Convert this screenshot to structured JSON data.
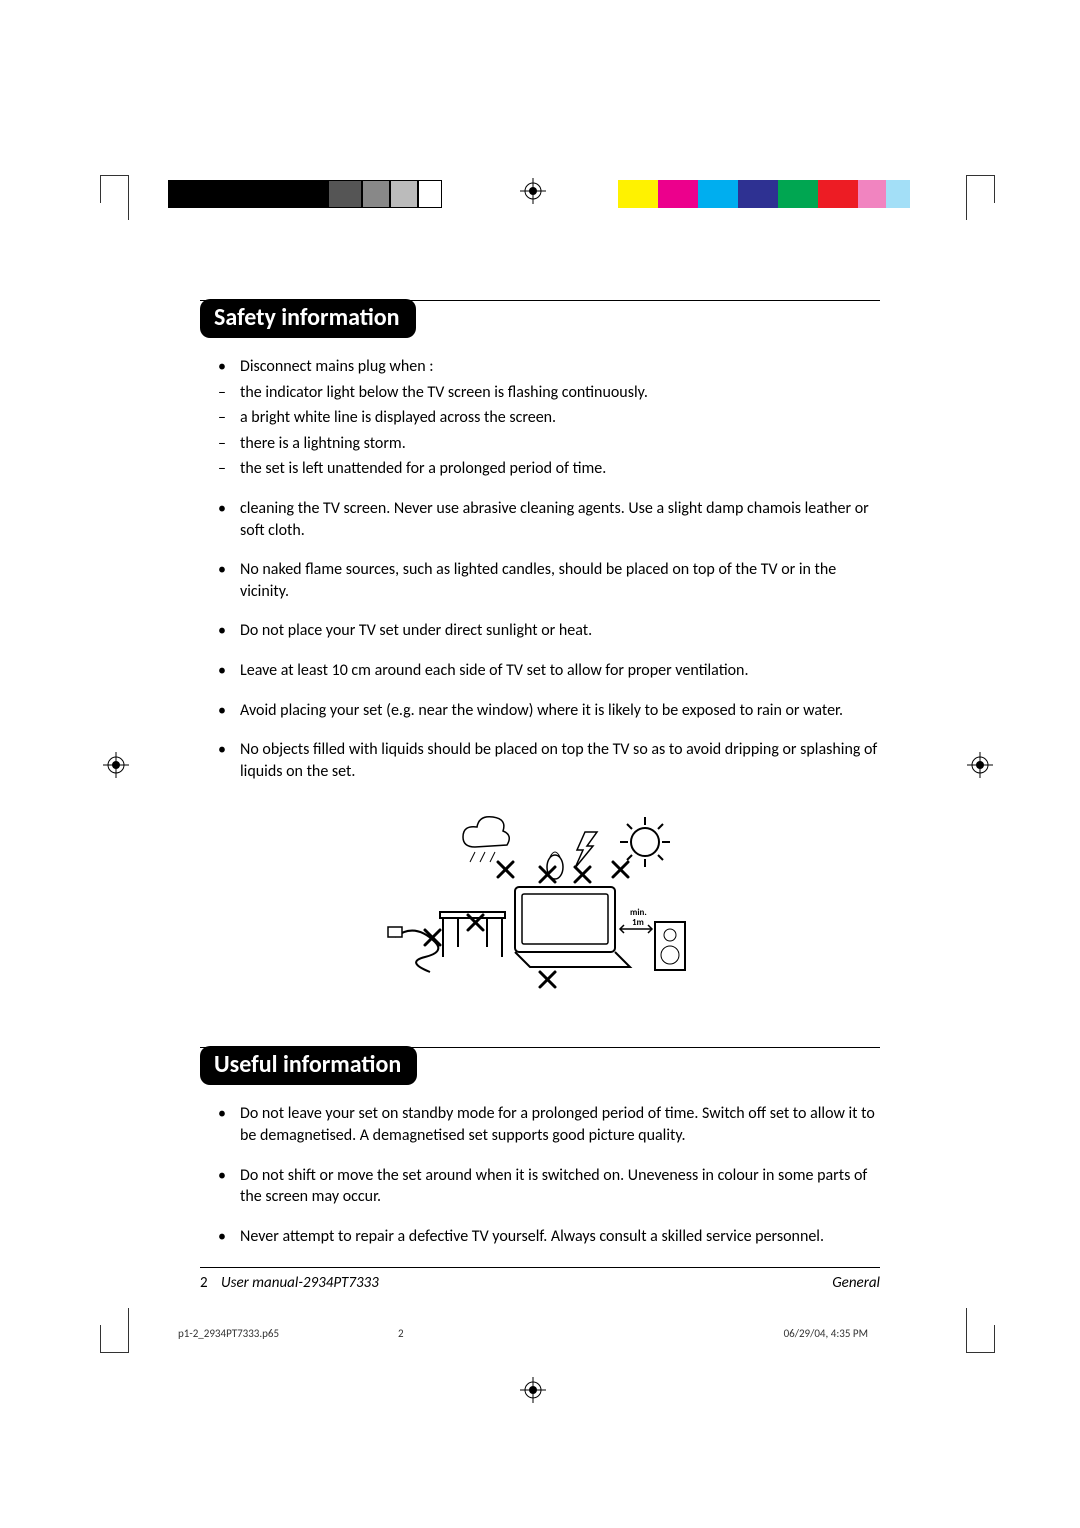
{
  "color_bars": {
    "left": {
      "widths": [
        40,
        40,
        40,
        40,
        34,
        28,
        28,
        24
      ],
      "colors": [
        "#000000",
        "#000000",
        "#000000",
        "#000000",
        "#555555",
        "#888888",
        "#bbbbbb",
        "#ffffff"
      ],
      "border": "#000"
    },
    "right": {
      "widths": [
        40,
        40,
        40,
        40,
        40,
        40,
        28,
        24
      ],
      "colors": [
        "#fff200",
        "#ec008c",
        "#00aeef",
        "#2e3192",
        "#00a651",
        "#ed1c24",
        "#f184c0",
        "#a3dff7"
      ]
    }
  },
  "section1": {
    "title": "Safety information",
    "items": [
      {
        "type": "dot",
        "text": "Disconnect mains plug when :"
      },
      {
        "type": "dash",
        "text": "the indicator light below the TV screen is flashing continuously."
      },
      {
        "type": "dash",
        "text": "a bright white line is displayed across the screen."
      },
      {
        "type": "dash",
        "text": "there is a lightning storm."
      },
      {
        "type": "dash",
        "text": "the set is left unattended for a prolonged period of time."
      },
      {
        "type": "dot",
        "gap": true,
        "text": "cleaning the TV screen. Never use abrasive cleaning agents. Use a slight damp chamois leather or soft cloth."
      },
      {
        "type": "dot",
        "gap": true,
        "text": "No naked flame sources, such as lighted candles, should be placed on top of the TV or in the vicinity."
      },
      {
        "type": "dot",
        "gap": true,
        "text": "Do not place your TV set under direct sunlight or heat."
      },
      {
        "type": "dot",
        "gap": true,
        "text": "Leave at least 10 cm around each side of TV set to allow for proper ventilation."
      },
      {
        "type": "dot",
        "gap": true,
        "text": "Avoid placing your set (e.g. near the window) where it is likely to be exposed to rain or water."
      },
      {
        "type": "dot",
        "gap": true,
        "text": "No objects filled with liquids should be placed on top the TV so as to avoid dripping or splashing of liquids on the set."
      }
    ]
  },
  "section2": {
    "title": "Useful information",
    "items": [
      {
        "type": "dot",
        "text": "Do not leave your set on standby mode for a prolonged period of time. Switch off set to allow it to be demagnetised.  A demagnetised set supports good picture quality."
      },
      {
        "type": "dot",
        "gap": true,
        "text": "Do not shift or move the set around when it is switched on. Uneveness in colour in some parts of the screen may occur."
      },
      {
        "type": "dot",
        "gap": true,
        "text": "Never attempt to repair a defective TV yourself. Always consult a skilled service personnel."
      }
    ]
  },
  "illustration": {
    "label_min": "min.",
    "label_1m": "1m"
  },
  "footer": {
    "page_number": "2",
    "manual": "User manual-2934PT7333",
    "section": "General"
  },
  "imprint": {
    "file": "p1-2_2934PT7333.p65",
    "sheet": "2",
    "datetime": "06/29/04, 4:35 PM"
  }
}
